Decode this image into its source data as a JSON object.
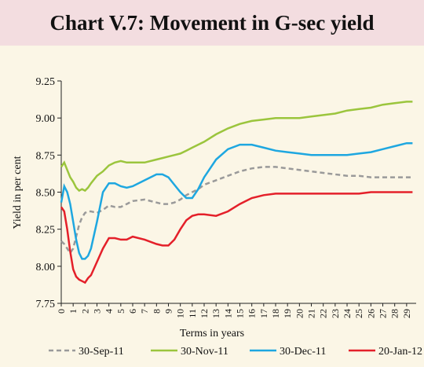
{
  "chart_data": {
    "type": "line",
    "title": "Chart V.7: Movement in G-sec yield",
    "xlabel": "Terms in years",
    "ylabel": "Yield in per cent",
    "x": [
      0,
      0.25,
      0.5,
      0.75,
      1,
      1.25,
      1.5,
      1.75,
      2,
      2.25,
      2.5,
      3,
      3.5,
      4,
      4.5,
      5,
      5.5,
      6,
      7,
      8,
      8.5,
      9,
      9.5,
      10,
      10.5,
      11,
      11.5,
      12,
      13,
      14,
      15,
      16,
      17,
      18,
      19,
      20,
      21,
      22,
      23,
      24,
      25,
      26,
      27,
      28,
      29,
      29.5
    ],
    "series": [
      {
        "name": "30-Sep-11",
        "color": "#9a9a9a",
        "dash": true,
        "values": [
          8.17,
          8.15,
          8.12,
          8.09,
          8.12,
          8.2,
          8.28,
          8.33,
          8.36,
          8.37,
          8.37,
          8.36,
          8.38,
          8.41,
          8.4,
          8.4,
          8.42,
          8.44,
          8.45,
          8.43,
          8.42,
          8.42,
          8.43,
          8.45,
          8.48,
          8.5,
          8.52,
          8.55,
          8.58,
          8.61,
          8.64,
          8.66,
          8.67,
          8.67,
          8.66,
          8.65,
          8.64,
          8.63,
          8.62,
          8.61,
          8.61,
          8.6,
          8.6,
          8.6,
          8.6,
          8.6
        ]
      },
      {
        "name": "30-Nov-11",
        "color": "#9bc53d",
        "values": [
          8.67,
          8.7,
          8.65,
          8.6,
          8.57,
          8.53,
          8.51,
          8.52,
          8.51,
          8.53,
          8.56,
          8.61,
          8.64,
          8.68,
          8.7,
          8.71,
          8.7,
          8.7,
          8.7,
          8.72,
          8.73,
          8.74,
          8.75,
          8.76,
          8.78,
          8.8,
          8.82,
          8.84,
          8.89,
          8.93,
          8.96,
          8.98,
          8.99,
          9.0,
          9.0,
          9.0,
          9.01,
          9.02,
          9.03,
          9.05,
          9.06,
          9.07,
          9.09,
          9.1,
          9.11,
          9.11
        ]
      },
      {
        "name": "30-Dec-11",
        "color": "#1ea7e0",
        "values": [
          8.43,
          8.54,
          8.5,
          8.42,
          8.3,
          8.18,
          8.09,
          8.05,
          8.05,
          8.07,
          8.12,
          8.3,
          8.5,
          8.56,
          8.56,
          8.54,
          8.53,
          8.54,
          8.58,
          8.62,
          8.62,
          8.6,
          8.55,
          8.5,
          8.46,
          8.46,
          8.52,
          8.6,
          8.72,
          8.79,
          8.82,
          8.82,
          8.8,
          8.78,
          8.77,
          8.76,
          8.75,
          8.75,
          8.75,
          8.75,
          8.76,
          8.77,
          8.79,
          8.81,
          8.83,
          8.83
        ]
      },
      {
        "name": "20-Jan-12",
        "color": "#e4202a",
        "values": [
          8.4,
          8.37,
          8.25,
          8.1,
          7.98,
          7.93,
          7.91,
          7.9,
          7.89,
          7.92,
          7.94,
          8.03,
          8.12,
          8.19,
          8.19,
          8.18,
          8.18,
          8.2,
          8.18,
          8.15,
          8.14,
          8.14,
          8.18,
          8.25,
          8.31,
          8.34,
          8.35,
          8.35,
          8.34,
          8.37,
          8.42,
          8.46,
          8.48,
          8.49,
          8.49,
          8.49,
          8.49,
          8.49,
          8.49,
          8.49,
          8.49,
          8.5,
          8.5,
          8.5,
          8.5,
          8.5
        ]
      }
    ],
    "xlim": [
      0,
      29.8
    ],
    "xticks": [
      0,
      1,
      2,
      3,
      4,
      5,
      6,
      7,
      8,
      9,
      10,
      11,
      12,
      13,
      14,
      15,
      16,
      17,
      18,
      19,
      20,
      21,
      22,
      23,
      24,
      25,
      26,
      27,
      28,
      29
    ],
    "ylim": [
      7.75,
      9.25
    ],
    "yticks": [
      7.75,
      {
        "value": 8,
        "label": "8.00"
      },
      8.25,
      {
        "value": 8.5,
        "label": "8.50"
      },
      8.75,
      {
        "value": 9,
        "label": "9.00"
      },
      9.25
    ],
    "grid": false,
    "legend": "bottom"
  }
}
